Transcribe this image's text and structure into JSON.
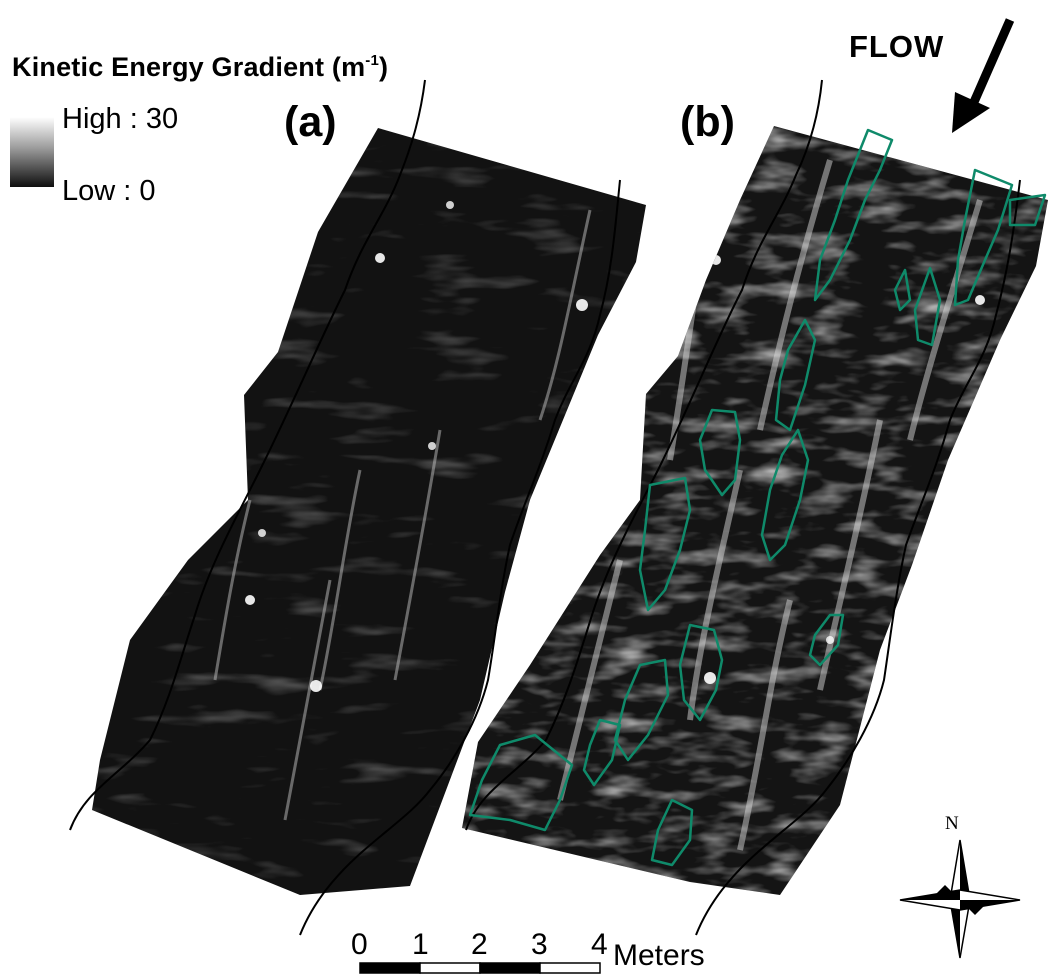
{
  "legend": {
    "title": "Kinetic Energy Gradient (m",
    "title_unit_exponent": "-1",
    "title_close": ")",
    "high_label": "High : 30",
    "low_label": "Low : 0",
    "ramp_colors": [
      "#ffffff",
      "#000000"
    ]
  },
  "panels": [
    {
      "label": "(a)"
    },
    {
      "label": "(b)"
    }
  ],
  "flow": {
    "label": "FLOW"
  },
  "scale_bar": {
    "ticks": [
      "0",
      "1",
      "2",
      "3",
      "4"
    ],
    "unit": "Meters"
  },
  "north_arrow": {
    "label": "N"
  },
  "colors": {
    "background": "#ffffff",
    "outline": "#0f8a6a",
    "channel_edge": "#000000"
  }
}
